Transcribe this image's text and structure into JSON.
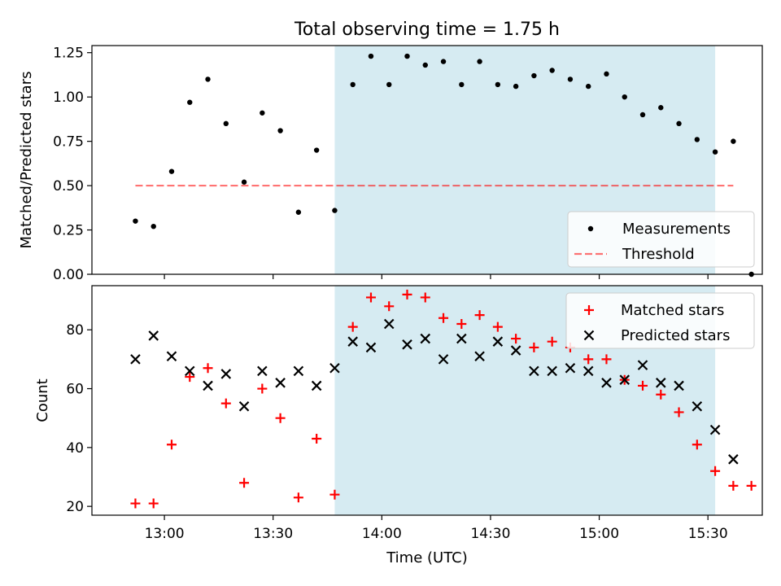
{
  "figure": {
    "title": "Total observing time = 1.75 h"
  },
  "chart_data": [
    {
      "type": "scatter",
      "ylabel": "Matched/Predicted stars",
      "xlabel": "",
      "x_tick_labels_shown": false,
      "ylim": [
        0,
        1.29
      ],
      "y_ticks": [
        "0.00",
        "0.25",
        "0.50",
        "0.75",
        "1.00",
        "1.25"
      ],
      "shaded_region": {
        "x_start": "13:47",
        "x_end": "15:32",
        "color": "#add8e6"
      },
      "threshold": {
        "name": "Threshold",
        "y": 0.5,
        "x_start": "12:52",
        "x_end": "15:37",
        "color": "#ff0000",
        "style": "dashed"
      },
      "series": [
        {
          "name": "Measurements",
          "marker": "dot",
          "color": "#000000",
          "points": [
            [
              "12:52",
              0.3
            ],
            [
              "12:57",
              0.27
            ],
            [
              "13:02",
              0.58
            ],
            [
              "13:07",
              0.97
            ],
            [
              "13:12",
              1.1
            ],
            [
              "13:17",
              0.85
            ],
            [
              "13:22",
              0.52
            ],
            [
              "13:27",
              0.91
            ],
            [
              "13:32",
              0.81
            ],
            [
              "13:37",
              0.35
            ],
            [
              "13:42",
              0.7
            ],
            [
              "13:47",
              0.36
            ],
            [
              "13:52",
              1.07
            ],
            [
              "13:57",
              1.23
            ],
            [
              "14:02",
              1.07
            ],
            [
              "14:07",
              1.23
            ],
            [
              "14:12",
              1.18
            ],
            [
              "14:17",
              1.2
            ],
            [
              "14:22",
              1.07
            ],
            [
              "14:27",
              1.2
            ],
            [
              "14:32",
              1.07
            ],
            [
              "14:37",
              1.06
            ],
            [
              "14:42",
              1.12
            ],
            [
              "14:47",
              1.15
            ],
            [
              "14:52",
              1.1
            ],
            [
              "14:57",
              1.06
            ],
            [
              "15:02",
              1.13
            ],
            [
              "15:07",
              1.0
            ],
            [
              "15:12",
              0.9
            ],
            [
              "15:17",
              0.94
            ],
            [
              "15:22",
              0.85
            ],
            [
              "15:27",
              0.76
            ],
            [
              "15:32",
              0.69
            ],
            [
              "15:37",
              0.75
            ],
            [
              "15:42",
              0.0
            ]
          ]
        }
      ],
      "legend": {
        "placement": "lower-right",
        "entries": [
          "Measurements",
          "Threshold"
        ]
      }
    },
    {
      "type": "scatter",
      "ylabel": "Count",
      "xlabel": "Time (UTC)",
      "x_tick_labels": [
        "13:00",
        "13:30",
        "14:00",
        "14:30",
        "15:00",
        "15:30"
      ],
      "ylim": [
        17,
        95
      ],
      "y_ticks": [
        "20",
        "40",
        "60",
        "80"
      ],
      "shaded_region": {
        "x_start": "13:47",
        "x_end": "15:32",
        "color": "#add8e6"
      },
      "series": [
        {
          "name": "Matched stars",
          "marker": "plus",
          "color": "#ff0000",
          "points": [
            [
              "12:52",
              21
            ],
            [
              "12:57",
              21
            ],
            [
              "13:02",
              41
            ],
            [
              "13:07",
              64
            ],
            [
              "13:12",
              67
            ],
            [
              "13:17",
              55
            ],
            [
              "13:22",
              28
            ],
            [
              "13:27",
              60
            ],
            [
              "13:32",
              50
            ],
            [
              "13:37",
              23
            ],
            [
              "13:42",
              43
            ],
            [
              "13:47",
              24
            ],
            [
              "13:52",
              81
            ],
            [
              "13:57",
              91
            ],
            [
              "14:02",
              88
            ],
            [
              "14:07",
              92
            ],
            [
              "14:12",
              91
            ],
            [
              "14:17",
              84
            ],
            [
              "14:22",
              82
            ],
            [
              "14:27",
              85
            ],
            [
              "14:32",
              81
            ],
            [
              "14:37",
              77
            ],
            [
              "14:42",
              74
            ],
            [
              "14:47",
              76
            ],
            [
              "14:52",
              74
            ],
            [
              "14:57",
              70
            ],
            [
              "15:02",
              70
            ],
            [
              "15:07",
              63
            ],
            [
              "15:12",
              61
            ],
            [
              "15:17",
              58
            ],
            [
              "15:22",
              52
            ],
            [
              "15:27",
              41
            ],
            [
              "15:32",
              32
            ],
            [
              "15:37",
              27
            ],
            [
              "15:42",
              27
            ]
          ]
        },
        {
          "name": "Predicted stars",
          "marker": "x",
          "color": "#000000",
          "points": [
            [
              "12:52",
              70
            ],
            [
              "12:57",
              78
            ],
            [
              "13:02",
              71
            ],
            [
              "13:07",
              66
            ],
            [
              "13:12",
              61
            ],
            [
              "13:17",
              65
            ],
            [
              "13:22",
              54
            ],
            [
              "13:27",
              66
            ],
            [
              "13:32",
              62
            ],
            [
              "13:37",
              66
            ],
            [
              "13:42",
              61
            ],
            [
              "13:47",
              67
            ],
            [
              "13:52",
              76
            ],
            [
              "13:57",
              74
            ],
            [
              "14:02",
              82
            ],
            [
              "14:07",
              75
            ],
            [
              "14:12",
              77
            ],
            [
              "14:17",
              70
            ],
            [
              "14:22",
              77
            ],
            [
              "14:27",
              71
            ],
            [
              "14:32",
              76
            ],
            [
              "14:37",
              73
            ],
            [
              "14:42",
              66
            ],
            [
              "14:47",
              66
            ],
            [
              "14:52",
              67
            ],
            [
              "14:57",
              66
            ],
            [
              "15:02",
              62
            ],
            [
              "15:07",
              63
            ],
            [
              "15:12",
              68
            ],
            [
              "15:17",
              62
            ],
            [
              "15:22",
              61
            ],
            [
              "15:27",
              54
            ],
            [
              "15:32",
              46
            ],
            [
              "15:37",
              36
            ]
          ]
        }
      ],
      "legend": {
        "placement": "top-right",
        "entries": [
          "Matched stars",
          "Predicted stars"
        ]
      }
    }
  ]
}
